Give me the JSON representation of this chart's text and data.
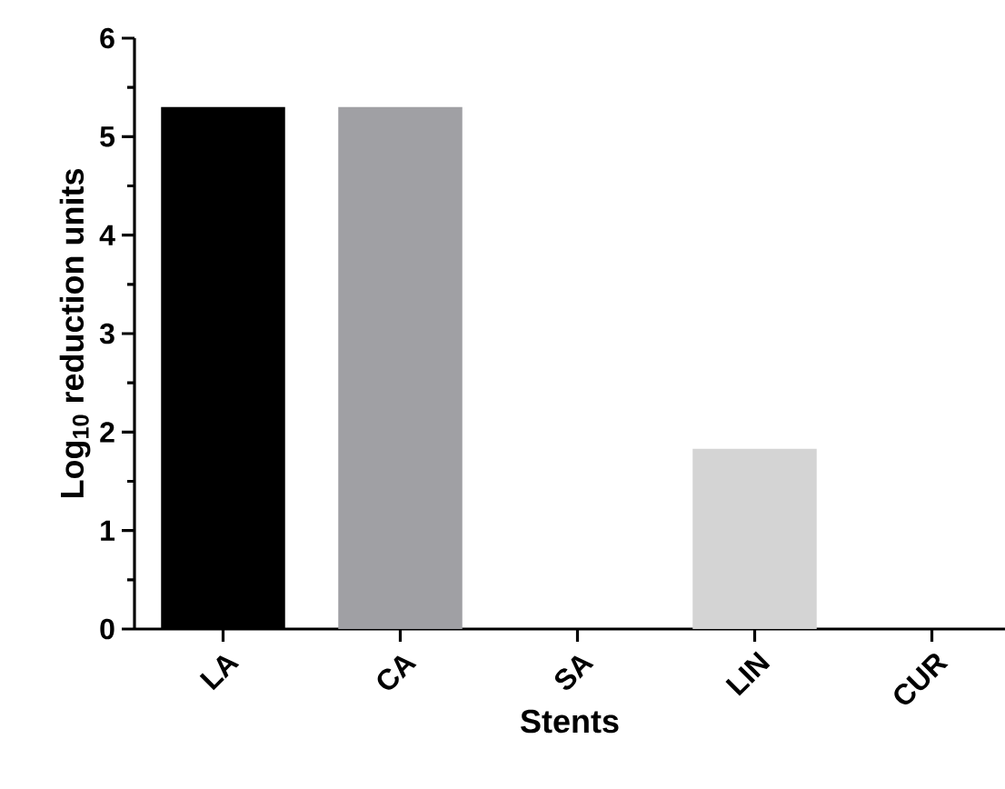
{
  "chart_data": {
    "type": "bar",
    "xlabel": "Stents",
    "ylabel": "Log$_{10}$ reduction units",
    "categories": [
      "LA",
      "CA",
      "SA",
      "LIN",
      "CUR"
    ],
    "values": [
      5.3,
      5.3,
      0,
      1.83,
      0
    ],
    "colors": [
      "#000000",
      "#a0a0a4",
      "#707070",
      "#d4d4d4",
      "#505050"
    ],
    "ylim": [
      0,
      6
    ],
    "yticks": [
      0,
      1,
      2,
      3,
      4,
      5,
      6
    ],
    "grid": false
  }
}
